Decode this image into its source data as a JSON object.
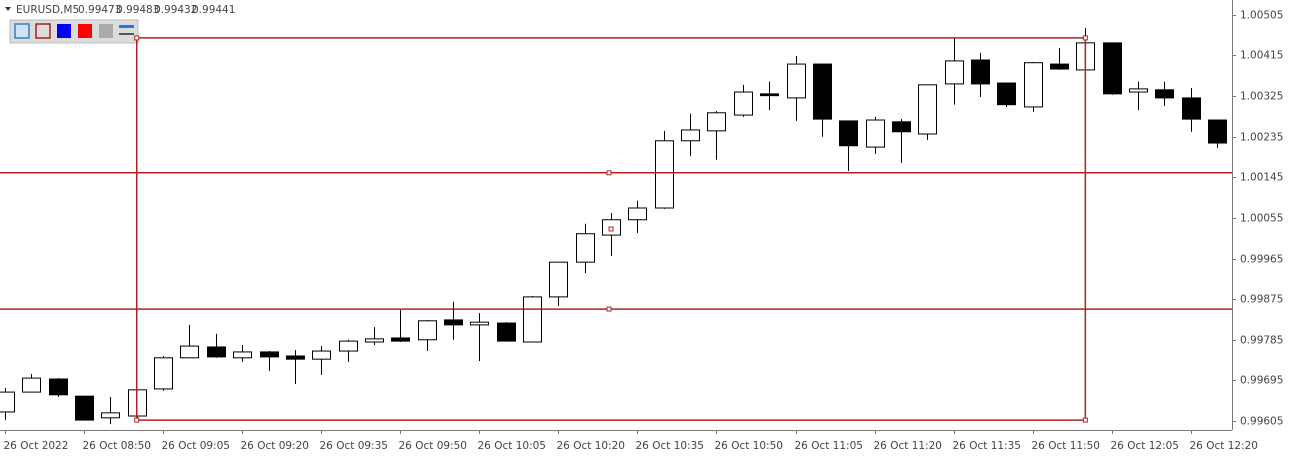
{
  "chart_data": {
    "type": "candlestick",
    "title": "EURUSD,M5",
    "quote": [
      0.99473,
      0.99483,
      0.99432,
      0.99441
    ],
    "categories": [
      "26 Oct 2022",
      null,
      null,
      "26 Oct 08:50",
      null,
      null,
      "26 Oct 09:05",
      null,
      null,
      "26 Oct 09:20",
      null,
      null,
      "26 Oct 09:35",
      null,
      null,
      "26 Oct 09:50",
      null,
      null,
      "26 Oct 10:05",
      null,
      null,
      "26 Oct 10:20",
      null,
      null,
      "26 Oct 10:35",
      null,
      null,
      "26 Oct 10:50",
      null,
      null,
      "26 Oct 11:05",
      null,
      null,
      "26 Oct 11:20",
      null,
      null,
      "26 Oct 11:35",
      null,
      null,
      "26 Oct 11:50",
      null,
      null,
      "26 Oct 12:05",
      null,
      null,
      "26 Oct 12:20",
      null
    ],
    "open": [
      0.99625,
      0.99669,
      0.99698,
      0.9966,
      0.99612,
      0.99616,
      0.99676,
      0.99745,
      0.99769,
      0.99745,
      0.99758,
      0.99749,
      0.99742,
      0.9976,
      0.9978,
      0.99789,
      0.99785,
      0.99829,
      0.99818,
      0.99822,
      0.9978,
      0.9988,
      0.99957,
      1.00017,
      1.00051,
      1.00077,
      1.00226,
      1.00248,
      1.00283,
      1.0033,
      1.00321,
      1.00396,
      1.0027,
      1.00212,
      1.00268,
      1.00241,
      1.00352,
      1.00405,
      1.00354,
      1.00301,
      1.00396,
      1.00383,
      1.00443,
      1.00334,
      1.00339,
      1.00321,
      1.00272
    ],
    "high": [
      0.99678,
      0.99709,
      0.997,
      0.9966,
      0.99658,
      0.99674,
      0.99749,
      0.99818,
      0.99798,
      0.99773,
      0.9976,
      0.99762,
      0.99771,
      0.99785,
      0.99813,
      0.99851,
      0.99829,
      0.99869,
      0.99844,
      0.99824,
      0.99882,
      0.99957,
      1.00042,
      1.00066,
      1.00093,
      1.00248,
      1.00286,
      1.00292,
      1.0035,
      1.00357,
      1.00414,
      1.00396,
      1.0027,
      1.00279,
      1.00274,
      1.0035,
      1.00454,
      1.00421,
      1.00354,
      1.00401,
      1.00432,
      1.00476,
      1.00443,
      1.00357,
      1.00357,
      1.00343,
      1.00272
    ],
    "low": [
      0.99607,
      0.99669,
      0.99658,
      0.99607,
      0.99598,
      0.99607,
      0.99672,
      0.99745,
      0.99745,
      0.99736,
      0.99716,
      0.99687,
      0.99707,
      0.99736,
      0.99773,
      0.9978,
      0.9976,
      0.99785,
      0.99738,
      0.99782,
      0.9978,
      0.9986,
      0.99933,
      0.99971,
      1.00022,
      1.00075,
      1.00192,
      1.00184,
      1.00279,
      1.00294,
      1.0027,
      1.00235,
      1.00159,
      1.00197,
      1.00177,
      1.00228,
      1.00306,
      1.00323,
      1.00301,
      1.0029,
      1.00383,
      1.00383,
      1.00328,
      1.00294,
      1.00303,
      1.00246,
      1.0021
    ],
    "close": [
      0.99669,
      0.997,
      0.99663,
      0.99607,
      0.99623,
      0.99674,
      0.99745,
      0.99771,
      0.99747,
      0.99758,
      0.99747,
      0.99742,
      0.9976,
      0.99782,
      0.99787,
      0.99782,
      0.99827,
      0.99818,
      0.99824,
      0.99782,
      0.9988,
      0.99957,
      1.0002,
      1.00051,
      1.00077,
      1.00226,
      1.0025,
      1.00288,
      1.00334,
      1.00326,
      1.00396,
      1.00274,
      1.00215,
      1.00272,
      1.00246,
      1.0035,
      1.00403,
      1.00352,
      1.00306,
      1.00399,
      1.00385,
      1.00443,
      1.0033,
      1.00341,
      1.00321,
      1.00274,
      1.00221
    ],
    "ylim": [
      0.99585,
      1.00538
    ],
    "yticks": [
      1.00505,
      1.00415,
      1.00325,
      1.00235,
      1.00145,
      1.00055,
      0.99965,
      0.99875,
      0.99785,
      0.99695,
      0.99605
    ],
    "up_color": "#ffffff",
    "down_color": "#000000",
    "object_color": "#b22222",
    "hlines": [
      1.00155,
      0.99853
    ],
    "rectangle": {
      "start": 5,
      "end": 41,
      "top": 1.00454,
      "bottom": 0.99607
    }
  }
}
